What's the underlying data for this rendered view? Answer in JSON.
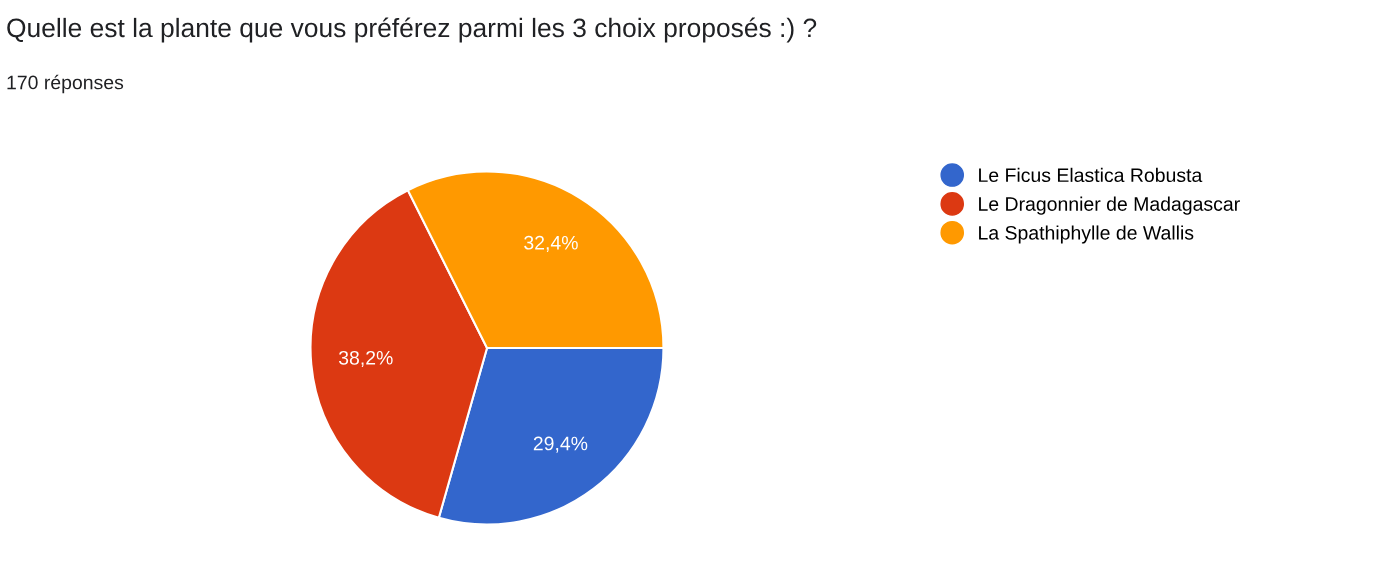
{
  "chart_data": {
    "type": "pie",
    "title": "Quelle est la plante que vous préférez parmi les 3 choix proposés :) ?",
    "subtitle": "170 réponses",
    "categories": [
      "Le Ficus Elastica Robusta",
      "Le Dragonnier de Madagascar",
      "La Spathiphylle de Wallis"
    ],
    "values": [
      29.4,
      38.2,
      32.4
    ],
    "colors": [
      "#3366cc",
      "#dc3912",
      "#ff9900"
    ],
    "value_labels": [
      "29,4%",
      "38,2%",
      "32,4%"
    ],
    "legend": "right"
  }
}
